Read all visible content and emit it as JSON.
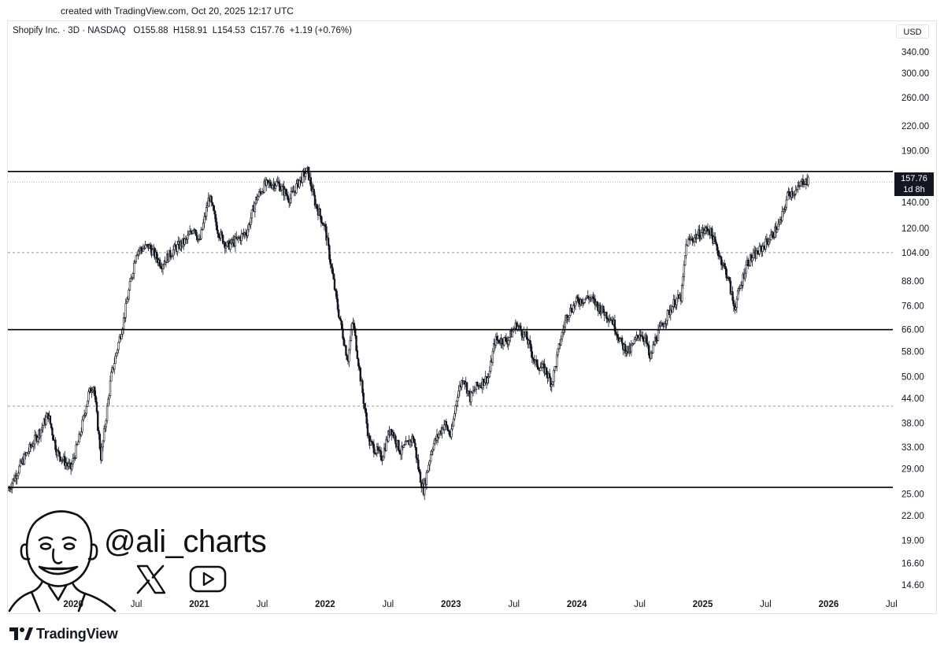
{
  "created_label": "created with TradingView.com, Oct 20, 2025 12:17 UTC",
  "header": {
    "symbol": "Shopify Inc. · 3D · NASDAQ",
    "open": "O155.88",
    "high": "H158.91",
    "low": "L154.53",
    "close": "C157.76",
    "change": "+1.19 (+0.76%)"
  },
  "currency": "USD",
  "price_tag": {
    "price": "157.76",
    "countdown": "1d 8h"
  },
  "branding": {
    "tradingview": "TradingView",
    "handle": "@ali_charts"
  },
  "colors": {
    "candle": "#131722",
    "line": "#000000",
    "dotted": "#999999",
    "tag_bg": "#131722"
  },
  "icons": [
    "tradingview-logo-icon",
    "x-logo-icon",
    "youtube-logo-icon",
    "avatar-caricature"
  ],
  "chart_data": {
    "type": "candlestick",
    "scale": "log",
    "ylim": [
      13.5,
      370
    ],
    "y_ticks": [
      340,
      300,
      260,
      220,
      190,
      140,
      120,
      104,
      88,
      76,
      66,
      58,
      50,
      44,
      38,
      33,
      29,
      25,
      22,
      19,
      16.6,
      14.6
    ],
    "y_tick_labels": [
      "340.00",
      "300.00",
      "260.00",
      "220.00",
      "190.00",
      "140.00",
      "120.00",
      "104.00",
      "88.00",
      "76.00",
      "66.00",
      "58.00",
      "50.00",
      "44.00",
      "38.00",
      "33.00",
      "29.00",
      "25.00",
      "22.00",
      "19.00",
      "16.60",
      "14.60"
    ],
    "x_labels": [
      {
        "label": "Jul",
        "date": 2019.5,
        "bold": false
      },
      {
        "label": "2020",
        "date": 2020.0,
        "bold": true
      },
      {
        "label": "Jul",
        "date": 2020.5,
        "bold": false
      },
      {
        "label": "2021",
        "date": 2021.0,
        "bold": true
      },
      {
        "label": "Jul",
        "date": 2021.5,
        "bold": false
      },
      {
        "label": "2022",
        "date": 2022.0,
        "bold": true
      },
      {
        "label": "Jul",
        "date": 2022.5,
        "bold": false
      },
      {
        "label": "2023",
        "date": 2023.0,
        "bold": true
      },
      {
        "label": "Jul",
        "date": 2023.5,
        "bold": false
      },
      {
        "label": "2024",
        "date": 2024.0,
        "bold": true
      },
      {
        "label": "Jul",
        "date": 2024.5,
        "bold": false
      },
      {
        "label": "2025",
        "date": 2025.0,
        "bold": true
      },
      {
        "label": "Jul",
        "date": 2025.5,
        "bold": false
      },
      {
        "label": "2026",
        "date": 2026.0,
        "bold": true
      },
      {
        "label": "Jul",
        "date": 2026.5,
        "bold": false
      }
    ],
    "x_range": [
      2019.48,
      2026.51
    ],
    "support_resistance_solid": [
      168,
      66,
      26
    ],
    "support_resistance_dotted": [
      104,
      42
    ],
    "last_price": 157.76,
    "price_path": [
      [
        2019.48,
        25.5
      ],
      [
        2019.6,
        30.5
      ],
      [
        2019.75,
        37
      ],
      [
        2019.8,
        40
      ],
      [
        2019.87,
        32
      ],
      [
        2019.98,
        29
      ],
      [
        2020.05,
        35
      ],
      [
        2020.12,
        45
      ],
      [
        2020.16,
        48
      ],
      [
        2020.22,
        31
      ],
      [
        2020.3,
        50
      ],
      [
        2020.4,
        70
      ],
      [
        2020.5,
        105
      ],
      [
        2020.6,
        108
      ],
      [
        2020.7,
        97
      ],
      [
        2020.8,
        106
      ],
      [
        2020.9,
        112
      ],
      [
        2020.96,
        122
      ],
      [
        2021.0,
        110
      ],
      [
        2021.08,
        145
      ],
      [
        2021.15,
        118
      ],
      [
        2021.22,
        108
      ],
      [
        2021.3,
        112
      ],
      [
        2021.38,
        118
      ],
      [
        2021.45,
        142
      ],
      [
        2021.52,
        155
      ],
      [
        2021.62,
        157
      ],
      [
        2021.72,
        143
      ],
      [
        2021.8,
        160
      ],
      [
        2021.86,
        169
      ],
      [
        2021.92,
        140
      ],
      [
        2022.0,
        120
      ],
      [
        2022.05,
        95
      ],
      [
        2022.1,
        75
      ],
      [
        2022.18,
        55
      ],
      [
        2022.22,
        70
      ],
      [
        2022.28,
        50
      ],
      [
        2022.35,
        34
      ],
      [
        2022.45,
        31
      ],
      [
        2022.52,
        37
      ],
      [
        2022.6,
        32
      ],
      [
        2022.7,
        35
      ],
      [
        2022.75,
        28
      ],
      [
        2022.78,
        25.5
      ],
      [
        2022.85,
        33
      ],
      [
        2022.95,
        38
      ],
      [
        2023.0,
        35
      ],
      [
        2023.05,
        45
      ],
      [
        2023.1,
        50
      ],
      [
        2023.15,
        44
      ],
      [
        2023.2,
        47
      ],
      [
        2023.3,
        50
      ],
      [
        2023.35,
        62
      ],
      [
        2023.45,
        62
      ],
      [
        2023.52,
        68
      ],
      [
        2023.6,
        63
      ],
      [
        2023.67,
        54
      ],
      [
        2023.75,
        52
      ],
      [
        2023.8,
        48
      ],
      [
        2023.87,
        62
      ],
      [
        2023.92,
        72
      ],
      [
        2024.0,
        78
      ],
      [
        2024.1,
        80
      ],
      [
        2024.18,
        75
      ],
      [
        2024.28,
        70
      ],
      [
        2024.36,
        60
      ],
      [
        2024.42,
        58
      ],
      [
        2024.5,
        65
      ],
      [
        2024.55,
        62
      ],
      [
        2024.58,
        55
      ],
      [
        2024.62,
        62
      ],
      [
        2024.7,
        70
      ],
      [
        2024.78,
        78
      ],
      [
        2024.83,
        80
      ],
      [
        2024.87,
        110
      ],
      [
        2024.95,
        115
      ],
      [
        2025.05,
        120
      ],
      [
        2025.12,
        105
      ],
      [
        2025.2,
        90
      ],
      [
        2025.25,
        75
      ],
      [
        2025.3,
        85
      ],
      [
        2025.35,
        98
      ],
      [
        2025.45,
        105
      ],
      [
        2025.55,
        115
      ],
      [
        2025.62,
        125
      ],
      [
        2025.68,
        148
      ],
      [
        2025.75,
        150
      ],
      [
        2025.8,
        160
      ],
      [
        2025.84,
        157.76
      ]
    ]
  }
}
